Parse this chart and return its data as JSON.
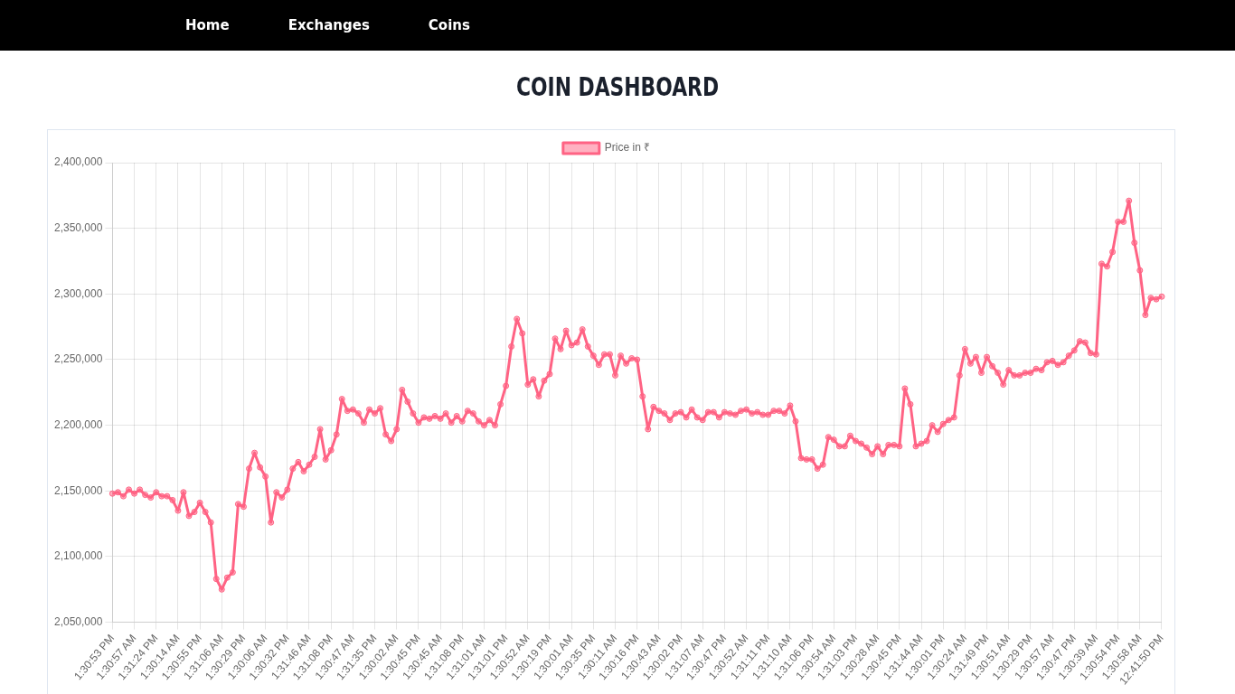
{
  "chart_data": {
    "type": "line",
    "title": "COIN DASHBOARD",
    "annotations": [
      "Home",
      "Exchanges",
      "Coins"
    ],
    "categories": [
      "1:30:53 PM",
      null,
      null,
      null,
      "1:30:57 AM",
      null,
      null,
      null,
      "1:31:24 PM",
      null,
      null,
      null,
      "1:30:14 AM",
      null,
      null,
      null,
      "1:30:55 PM",
      null,
      null,
      null,
      "1:31:06 AM",
      null,
      null,
      null,
      "1:30:29 PM",
      null,
      null,
      null,
      "1:30:06 AM",
      null,
      null,
      null,
      "1:30:32 PM",
      null,
      null,
      null,
      "1:31:46 AM",
      null,
      null,
      null,
      "1:31:08 PM",
      null,
      null,
      null,
      "1:30:47 AM",
      null,
      null,
      null,
      "1:31:35 PM",
      null,
      null,
      null,
      "1:30:02 AM",
      null,
      null,
      null,
      "1:30:45 PM",
      null,
      null,
      null,
      "1:30:45 AM",
      null,
      null,
      null,
      "1:31:08 PM",
      null,
      null,
      null,
      "1:31:01 AM",
      null,
      null,
      null,
      "1:31:01 PM",
      null,
      null,
      null,
      "1:30:52 AM",
      null,
      null,
      null,
      "1:30:19 PM",
      null,
      null,
      null,
      "1:30:01 AM",
      null,
      null,
      null,
      "1:30:35 PM",
      null,
      null,
      null,
      "1:30:11 AM",
      null,
      null,
      null,
      "1:30:16 PM",
      null,
      null,
      null,
      "1:30:43 AM",
      null,
      null,
      null,
      "1:30:02 PM",
      null,
      null,
      null,
      "1:31:07 AM",
      null,
      null,
      null,
      "1:30:47 PM",
      null,
      null,
      null,
      "1:30:52 AM",
      null,
      null,
      null,
      "1:31:11 PM",
      null,
      null,
      null,
      "1:31:10 AM",
      null,
      null,
      null,
      "1:31:06 PM",
      null,
      null,
      null,
      "1:30:54 AM",
      null,
      null,
      null,
      "1:31:03 PM",
      null,
      null,
      null,
      "1:30:28 AM",
      null,
      null,
      null,
      "1:30:45 PM",
      null,
      null,
      null,
      "1:31:44 AM",
      null,
      null,
      null,
      "1:30:01 PM",
      null,
      null,
      null,
      "1:30:24 AM",
      null,
      null,
      null,
      "1:31:49 PM",
      null,
      null,
      null,
      "1:30:51 AM",
      null,
      null,
      null,
      "1:30:29 PM",
      null,
      null,
      null,
      "1:30:57 AM",
      null,
      null,
      null,
      "1:30:47 PM",
      null,
      null,
      null,
      "1:30:39 AM",
      null,
      null,
      null,
      "1:30:54 PM",
      null,
      null,
      null,
      "1:30:58 AM",
      null,
      null,
      null,
      "12:41:50 PM"
    ],
    "series": [
      {
        "name": "Price in ₹",
        "color": "#ff6384",
        "values": [
          2148000,
          2149000,
          2146000,
          2151000,
          2148000,
          2151000,
          2147000,
          2145000,
          2149000,
          2146000,
          2146000,
          2143000,
          2135000,
          2149000,
          2131000,
          2134000,
          2141000,
          2134000,
          2126000,
          2083000,
          2075000,
          2084000,
          2088000,
          2140000,
          2138000,
          2167000,
          2179000,
          2168000,
          2161000,
          2126000,
          2149000,
          2145000,
          2151000,
          2167000,
          2172000,
          2165000,
          2170000,
          2176000,
          2197000,
          2174000,
          2181000,
          2193000,
          2220000,
          2211000,
          2212000,
          2209000,
          2202000,
          2212000,
          2209000,
          2213000,
          2193000,
          2188000,
          2197000,
          2227000,
          2218000,
          2209000,
          2202000,
          2206000,
          2205000,
          2207000,
          2205000,
          2209000,
          2202000,
          2207000,
          2203000,
          2211000,
          2209000,
          2203000,
          2200000,
          2204000,
          2200000,
          2216000,
          2230000,
          2260000,
          2281000,
          2270000,
          2231000,
          2235000,
          2222000,
          2234000,
          2239000,
          2266000,
          2258000,
          2272000,
          2261000,
          2263000,
          2273000,
          2260000,
          2253000,
          2246000,
          2254000,
          2254000,
          2238000,
          2253000,
          2247000,
          2251000,
          2250000,
          2222000,
          2197000,
          2214000,
          2211000,
          2209000,
          2204000,
          2209000,
          2210000,
          2206000,
          2212000,
          2206000,
          2204000,
          2210000,
          2210000,
          2206000,
          2210000,
          2209000,
          2208000,
          2211000,
          2212000,
          2209000,
          2210000,
          2208000,
          2208000,
          2211000,
          2211000,
          2209000,
          2215000,
          2203000,
          2175000,
          2174000,
          2174000,
          2167000,
          2170000,
          2191000,
          2189000,
          2184000,
          2184000,
          2192000,
          2188000,
          2186000,
          2183000,
          2178000,
          2184000,
          2178000,
          2185000,
          2185000,
          2184000,
          2228000,
          2216000,
          2184000,
          2186000,
          2188000,
          2200000,
          2195000,
          2201000,
          2204000,
          2206000,
          2238000,
          2258000,
          2247000,
          2252000,
          2240000,
          2252000,
          2245000,
          2240000,
          2231000,
          2242000,
          2238000,
          2238000,
          2240000,
          2240000,
          2243000,
          2242000,
          2248000,
          2249000,
          2246000,
          2248000,
          2253000,
          2257000,
          2264000,
          2263000,
          2255000,
          2254000,
          2323000,
          2321000,
          2332000,
          2355000,
          2355000,
          2371000,
          2339000,
          2318000,
          2284000,
          2297000,
          2296000,
          2298000
        ]
      }
    ],
    "ylim": [
      2050000,
      2400000
    ],
    "yticks": [
      {
        "value": 2050000,
        "label": "2,050,000"
      },
      {
        "value": 2100000,
        "label": "2,100,000"
      },
      {
        "value": 2150000,
        "label": "2,150,000"
      },
      {
        "value": 2200000,
        "label": "2,200,000"
      },
      {
        "value": 2250000,
        "label": "2,250,000"
      },
      {
        "value": 2300000,
        "label": "2,300,000"
      },
      {
        "value": 2350000,
        "label": "2,350,000"
      },
      {
        "value": 2400000,
        "label": "2,400,000"
      }
    ],
    "grid": true,
    "legend": "top",
    "marker": "circle",
    "line_style": "solid"
  }
}
